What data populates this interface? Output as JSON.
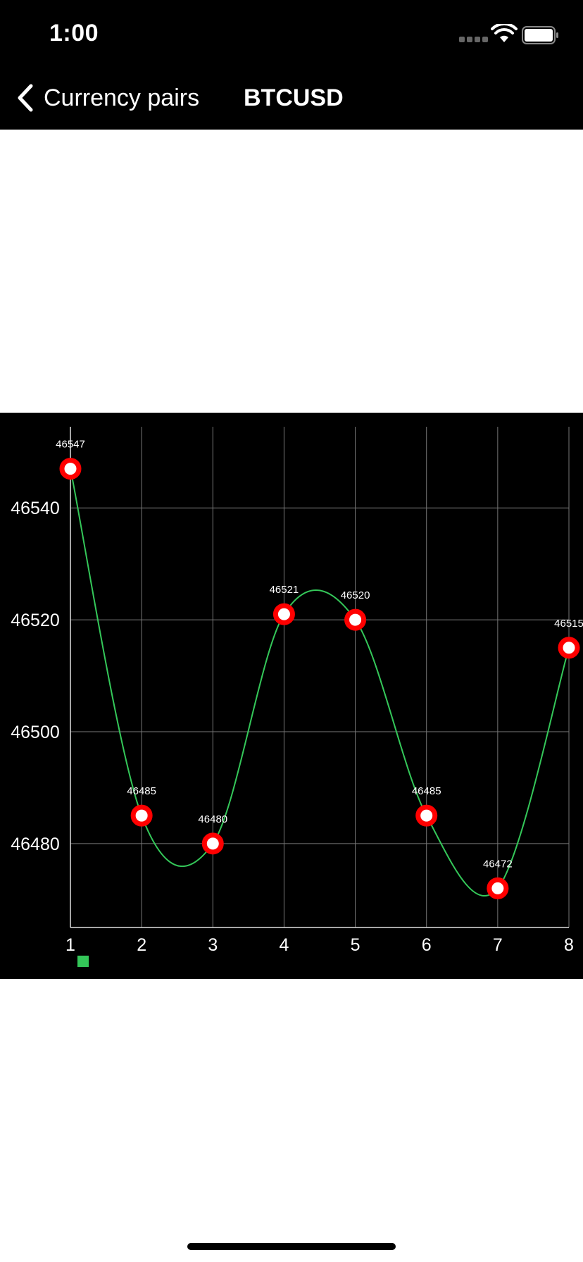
{
  "status_bar": {
    "time": "1:00"
  },
  "nav": {
    "back_label": "Currency pairs",
    "title": "BTCUSD"
  },
  "colors": {
    "line": "#34C759",
    "point": "#FF0000",
    "legend": "#34C759"
  },
  "chart_data": {
    "type": "line",
    "x": [
      1,
      2,
      3,
      4,
      5,
      6,
      7,
      8
    ],
    "series": [
      {
        "values": [
          46547,
          46485,
          46480,
          46521,
          46520,
          46485,
          46472,
          46515
        ]
      }
    ],
    "data_labels": [
      "46547",
      "46485",
      "46480",
      "46521",
      "46520",
      "46485",
      "46472",
      "46515"
    ],
    "x_ticks": [
      "1",
      "2",
      "3",
      "4",
      "5",
      "6",
      "7",
      "8"
    ],
    "y_ticks": [
      {
        "value": 46540,
        "label": "46540"
      },
      {
        "value": 46520,
        "label": "46520"
      },
      {
        "value": 46500,
        "label": "46500"
      },
      {
        "value": 46480,
        "label": "46480"
      }
    ],
    "xlim": [
      1,
      8
    ],
    "ylim": [
      46465,
      46554.5
    ],
    "grid": true,
    "smooth": true,
    "legend": "bottom-left"
  }
}
